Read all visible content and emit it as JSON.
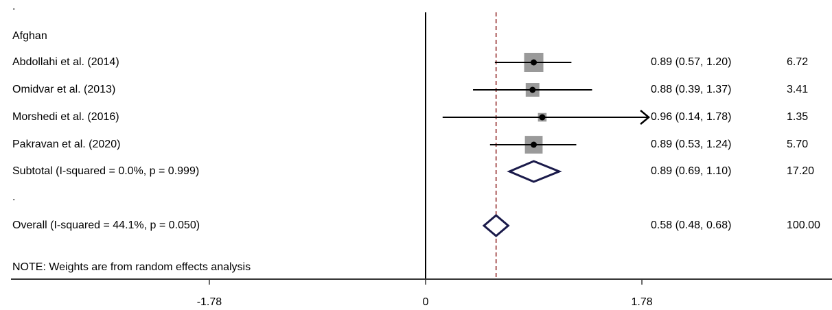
{
  "chart_data": {
    "type": "forest",
    "group_label": "Afghan",
    "leading_dot": ".",
    "studies": [
      {
        "label": "Abdollahi et al. (2014)",
        "es": 0.89,
        "lo": 0.57,
        "hi": 1.2,
        "ci_text": "0.89 (0.57, 1.20)",
        "weight": "6.72",
        "weight_value": 6.72
      },
      {
        "label": "Omidvar et al. (2013)",
        "es": 0.88,
        "lo": 0.39,
        "hi": 1.37,
        "ci_text": "0.88 (0.39, 1.37)",
        "weight": "3.41",
        "weight_value": 3.41
      },
      {
        "label": "Morshedi et al. (2016)",
        "es": 0.96,
        "lo": 0.14,
        "hi": 1.78,
        "ci_text": "0.96 (0.14, 1.78)",
        "weight": "1.35",
        "weight_value": 1.35,
        "arrow_right": true
      },
      {
        "label": "Pakravan et al. (2020)",
        "es": 0.89,
        "lo": 0.53,
        "hi": 1.24,
        "ci_text": "0.89 (0.53, 1.24)",
        "weight": "5.70",
        "weight_value": 5.7
      }
    ],
    "subtotal": {
      "label": "Subtotal  (I-squared = 0.0%, p = 0.999)",
      "es": 0.89,
      "lo": 0.69,
      "hi": 1.1,
      "ci_text": "0.89 (0.69, 1.10)",
      "weight": "17.20"
    },
    "spacer_dot": ".",
    "overall": {
      "label": "Overall  (I-squared = 44.1%, p = 0.050)",
      "es": 0.58,
      "lo": 0.48,
      "hi": 0.68,
      "ci_text": "0.58 (0.48, 0.68)",
      "weight": "100.00"
    },
    "note": "NOTE: Weights are from random effects analysis",
    "x_ticks": [
      -1.78,
      0,
      1.78
    ],
    "x_tick_labels": [
      "-1.78",
      "0",
      "1.78"
    ],
    "null_line": 0,
    "pooled_reference_line": 0.58,
    "arrow_clip": 1.78,
    "colors": {
      "line": "#000000",
      "square": "#9a9a9a",
      "diamond": "#1a1a4a",
      "reference": "#8b1a1a"
    }
  }
}
